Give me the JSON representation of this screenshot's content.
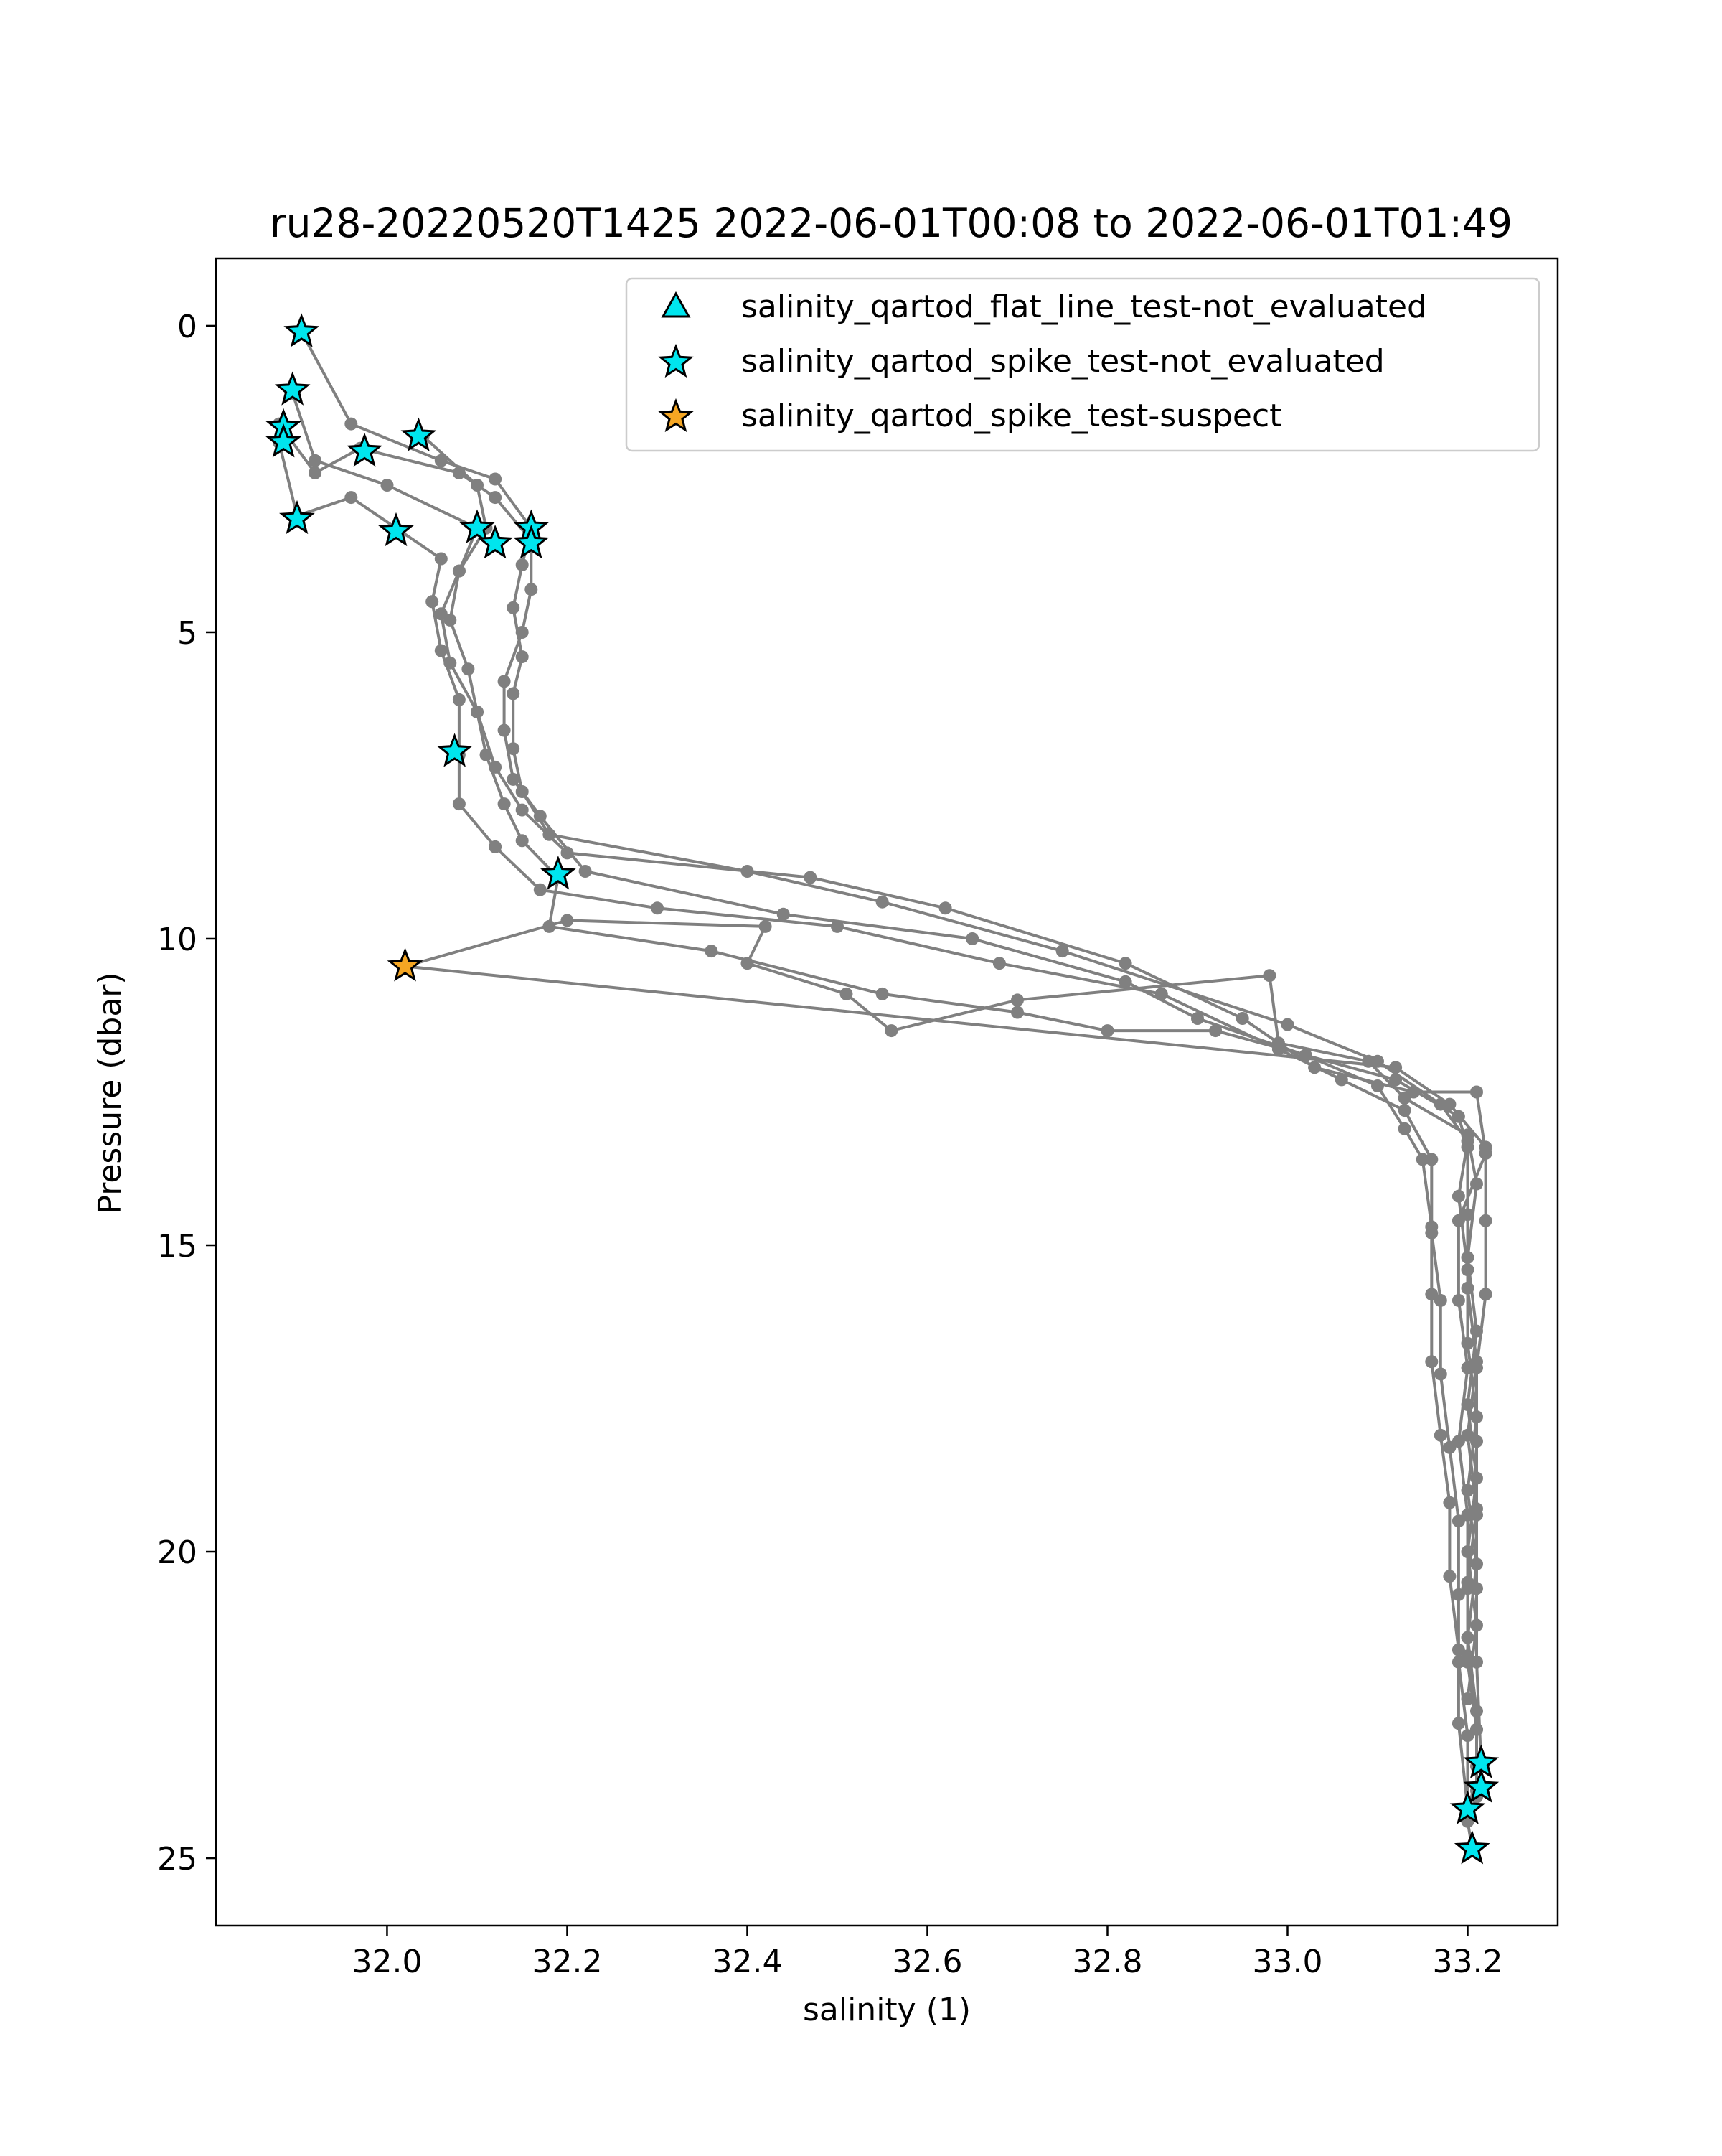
{
  "chart_data": {
    "type": "scatter",
    "title": "ru28-20220520T1425 2022-06-01T00:08 to 2022-06-01T01:49",
    "xlabel": "salinity (1)",
    "ylabel": "Pressure (dbar)",
    "xlim": [
      31.81,
      33.3
    ],
    "ylim": [
      26.1,
      -1.1
    ],
    "y_inverted": true,
    "grid": false,
    "legend_position": "top-right",
    "x_ticks": [
      32.0,
      32.2,
      32.4,
      32.6,
      32.8,
      33.0,
      33.2
    ],
    "x_tick_labels": [
      "32.0",
      "32.2",
      "32.4",
      "32.6",
      "32.8",
      "33.0",
      "33.2"
    ],
    "y_ticks": [
      0,
      5,
      10,
      15,
      20,
      25
    ],
    "y_tick_labels": [
      "0",
      "5",
      "10",
      "15",
      "20",
      "25"
    ],
    "colors": {
      "profile_line": "#808080",
      "not_evaluated": "#00e5ee",
      "suspect": "#f5a623",
      "marker_edge": "#000000"
    },
    "profiles": [
      {
        "points": [
          [
            31.905,
            0.1
          ],
          [
            31.96,
            1.6
          ],
          [
            32.06,
            2.2
          ],
          [
            32.12,
            2.5
          ],
          [
            32.16,
            3.3
          ],
          [
            32.15,
            3.9
          ],
          [
            32.14,
            4.6
          ],
          [
            32.15,
            5.4
          ],
          [
            32.14,
            6.0
          ],
          [
            32.14,
            6.9
          ],
          [
            32.15,
            7.6
          ],
          [
            32.18,
            8.3
          ],
          [
            32.4,
            8.9
          ],
          [
            32.55,
            9.4
          ],
          [
            32.75,
            10.2
          ],
          [
            33.0,
            11.4
          ],
          [
            33.1,
            12.0
          ],
          [
            33.17,
            12.7
          ],
          [
            33.2,
            13.3
          ],
          [
            33.19,
            14.2
          ],
          [
            33.2,
            15.4
          ],
          [
            33.2,
            16.6
          ],
          [
            33.21,
            17.8
          ],
          [
            33.2,
            19.0
          ],
          [
            33.21,
            20.2
          ],
          [
            33.2,
            21.4
          ],
          [
            33.21,
            22.6
          ],
          [
            33.21,
            23.5
          ]
        ]
      },
      {
        "points": [
          [
            31.895,
            1.1
          ],
          [
            31.92,
            2.2
          ],
          [
            32.0,
            2.6
          ],
          [
            32.1,
            3.3
          ],
          [
            32.08,
            4.0
          ],
          [
            32.07,
            4.8
          ],
          [
            32.09,
            5.6
          ],
          [
            32.1,
            6.3
          ],
          [
            32.12,
            7.2
          ],
          [
            32.15,
            7.9
          ],
          [
            32.2,
            8.6
          ],
          [
            32.47,
            9.0
          ],
          [
            32.62,
            9.5
          ],
          [
            32.82,
            10.4
          ],
          [
            32.95,
            11.3
          ],
          [
            33.03,
            12.1
          ],
          [
            33.14,
            12.5
          ],
          [
            33.21,
            12.5
          ],
          [
            33.22,
            13.5
          ],
          [
            33.19,
            14.6
          ],
          [
            33.19,
            15.9
          ],
          [
            33.2,
            17.0
          ],
          [
            33.19,
            18.2
          ],
          [
            33.2,
            19.4
          ],
          [
            33.2,
            20.6
          ],
          [
            33.2,
            21.8
          ],
          [
            33.21,
            22.9
          ],
          [
            33.21,
            23.9
          ]
        ]
      },
      {
        "points": [
          [
            31.88,
            1.6
          ],
          [
            31.92,
            2.4
          ],
          [
            31.97,
            2.0
          ],
          [
            32.08,
            2.4
          ],
          [
            32.12,
            2.8
          ],
          [
            32.16,
            3.5
          ],
          [
            32.16,
            4.3
          ],
          [
            32.15,
            5.0
          ],
          [
            32.13,
            5.8
          ],
          [
            32.13,
            6.6
          ],
          [
            32.14,
            7.4
          ],
          [
            32.17,
            8.0
          ],
          [
            32.22,
            8.9
          ],
          [
            32.44,
            9.6
          ],
          [
            32.65,
            10.0
          ],
          [
            32.82,
            10.7
          ],
          [
            32.9,
            11.3
          ],
          [
            33.02,
            11.9
          ],
          [
            33.1,
            12.4
          ],
          [
            33.13,
            13.1
          ],
          [
            33.15,
            13.6
          ],
          [
            33.16,
            14.7
          ],
          [
            33.16,
            15.8
          ],
          [
            33.16,
            16.9
          ],
          [
            33.17,
            18.1
          ],
          [
            33.18,
            19.2
          ],
          [
            33.18,
            20.4
          ],
          [
            33.19,
            21.6
          ],
          [
            33.19,
            22.8
          ],
          [
            33.2,
            24.2
          ]
        ]
      },
      {
        "points": [
          [
            31.88,
            1.9
          ],
          [
            31.9,
            3.1
          ],
          [
            31.96,
            2.8
          ],
          [
            32.01,
            3.3
          ],
          [
            32.06,
            3.8
          ],
          [
            32.05,
            4.5
          ],
          [
            32.06,
            5.3
          ],
          [
            32.08,
            6.1
          ],
          [
            32.08,
            7.0
          ],
          [
            32.08,
            7.8
          ],
          [
            32.12,
            8.5
          ],
          [
            32.17,
            9.2
          ],
          [
            32.3,
            9.5
          ],
          [
            32.5,
            9.8
          ],
          [
            32.68,
            10.4
          ],
          [
            32.86,
            10.9
          ],
          [
            32.99,
            11.8
          ],
          [
            33.06,
            12.3
          ],
          [
            33.13,
            12.8
          ],
          [
            33.16,
            13.6
          ],
          [
            33.16,
            14.8
          ],
          [
            33.17,
            15.9
          ],
          [
            33.17,
            17.1
          ],
          [
            33.18,
            18.3
          ],
          [
            33.19,
            19.5
          ],
          [
            33.19,
            20.7
          ],
          [
            33.19,
            21.8
          ],
          [
            33.2,
            23.0
          ],
          [
            33.2,
            24.4
          ],
          [
            33.205,
            24.85
          ]
        ]
      },
      {
        "points": [
          [
            32.04,
            1.8
          ],
          [
            32.1,
            2.6
          ],
          [
            32.11,
            3.3
          ],
          [
            32.08,
            4.0
          ],
          [
            32.06,
            4.7
          ],
          [
            32.07,
            5.5
          ],
          [
            32.1,
            6.3
          ],
          [
            32.11,
            7.0
          ],
          [
            32.13,
            7.8
          ],
          [
            32.15,
            8.4
          ],
          [
            32.19,
            9.0
          ],
          [
            32.18,
            9.8
          ],
          [
            32.36,
            10.2
          ],
          [
            32.55,
            10.9
          ],
          [
            32.7,
            11.2
          ],
          [
            32.8,
            11.5
          ],
          [
            32.92,
            11.5
          ],
          [
            33.02,
            11.9
          ],
          [
            33.12,
            12.3
          ],
          [
            33.19,
            12.9
          ],
          [
            33.2,
            13.4
          ],
          [
            33.2,
            14.5
          ],
          [
            33.2,
            15.7
          ],
          [
            33.21,
            16.9
          ],
          [
            33.2,
            18.1
          ],
          [
            33.21,
            19.3
          ],
          [
            33.2,
            20.5
          ],
          [
            33.2,
            21.7
          ],
          [
            33.21,
            22.9
          ],
          [
            33.21,
            24.0
          ]
        ]
      },
      {
        "points": [
          [
            32.02,
            10.45
          ],
          [
            32.2,
            9.7
          ],
          [
            32.42,
            9.8
          ],
          [
            32.4,
            10.4
          ],
          [
            32.51,
            10.9
          ],
          [
            32.56,
            11.5
          ],
          [
            32.7,
            11.0
          ],
          [
            32.98,
            10.6
          ],
          [
            32.99,
            11.7
          ],
          [
            33.09,
            12.0
          ],
          [
            33.13,
            12.6
          ],
          [
            33.2,
            13.2
          ],
          [
            33.21,
            14.0
          ],
          [
            33.2,
            15.2
          ],
          [
            33.21,
            16.4
          ],
          [
            33.2,
            17.6
          ],
          [
            33.21,
            18.8
          ],
          [
            33.2,
            20.0
          ],
          [
            33.21,
            21.2
          ],
          [
            33.2,
            22.4
          ]
        ]
      },
      {
        "points": [
          [
            32.02,
            10.45
          ],
          [
            33.12,
            12.1
          ],
          [
            33.18,
            12.7
          ],
          [
            33.22,
            13.4
          ],
          [
            33.22,
            14.6
          ],
          [
            33.22,
            15.8
          ],
          [
            33.21,
            17.0
          ],
          [
            33.21,
            18.2
          ],
          [
            33.21,
            19.4
          ],
          [
            33.21,
            20.6
          ],
          [
            33.21,
            21.8
          ],
          [
            33.215,
            23.45
          ]
        ]
      }
    ],
    "flags": [
      {
        "label": "salinity_qartod_spike_test-not_evaluated",
        "points": [
          [
            31.905,
            0.1
          ],
          [
            31.895,
            1.05
          ],
          [
            31.885,
            1.65
          ],
          [
            31.885,
            1.9
          ],
          [
            31.975,
            2.05
          ],
          [
            32.035,
            1.8
          ],
          [
            31.9,
            3.15
          ],
          [
            32.01,
            3.35
          ],
          [
            32.1,
            3.3
          ],
          [
            32.12,
            3.55
          ],
          [
            32.16,
            3.3
          ],
          [
            32.16,
            3.55
          ],
          [
            32.075,
            6.95
          ],
          [
            32.19,
            8.95
          ],
          [
            33.215,
            23.45
          ],
          [
            33.215,
            23.85
          ],
          [
            33.2,
            24.2
          ],
          [
            33.205,
            24.85
          ]
        ]
      },
      {
        "label": "salinity_qartod_spike_test-suspect",
        "points": [
          [
            32.02,
            10.45
          ]
        ]
      }
    ],
    "legend": [
      {
        "label": "salinity_qartod_flat_line_test-not_evaluated",
        "marker": "triangle",
        "color": "#00e5ee"
      },
      {
        "label": "salinity_qartod_spike_test-not_evaluated",
        "marker": "star",
        "color": "#00e5ee"
      },
      {
        "label": "salinity_qartod_spike_test-suspect",
        "marker": "star",
        "color": "#f5a623"
      }
    ]
  }
}
